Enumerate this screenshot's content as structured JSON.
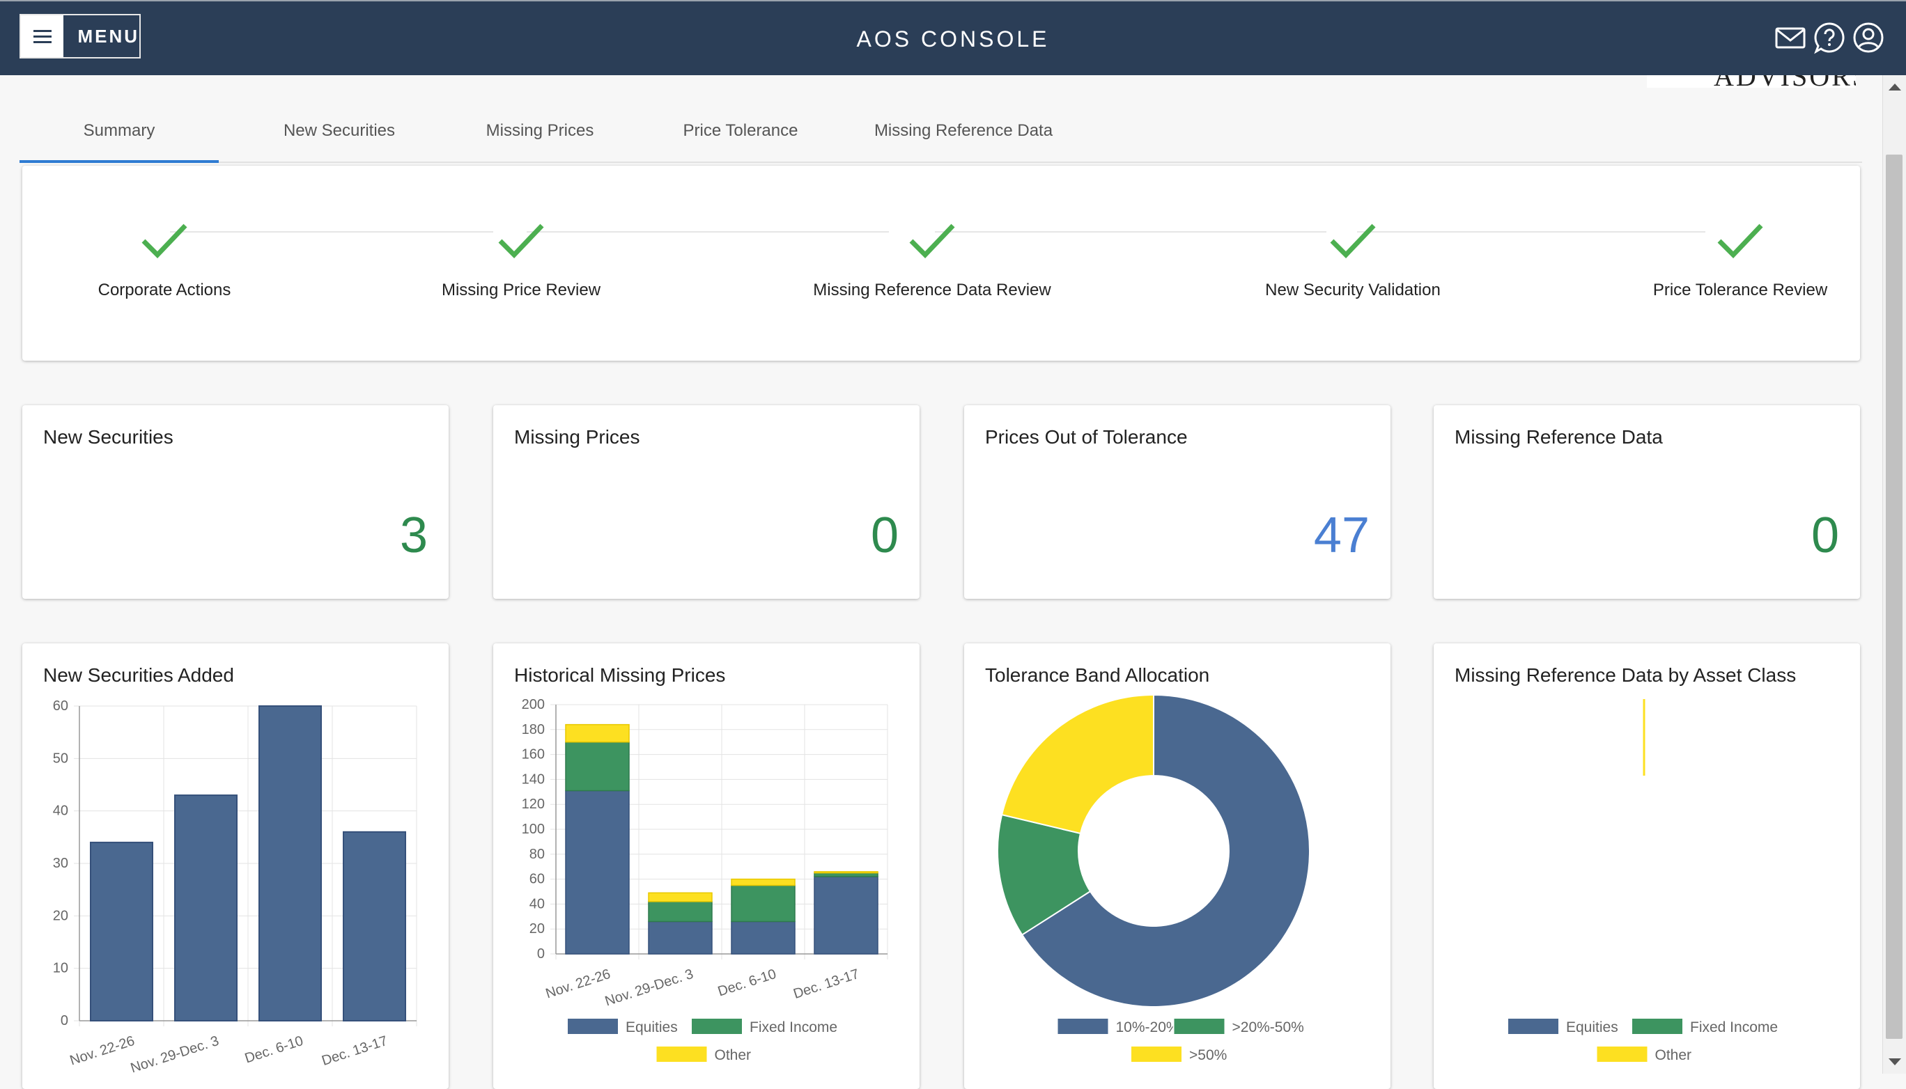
{
  "header": {
    "menu_label": "MENU",
    "title": "AOS CONSOLE"
  },
  "logo_text": "ADVISORS",
  "tabs": [
    {
      "label": "Summary",
      "active": true
    },
    {
      "label": "New Securities",
      "active": false
    },
    {
      "label": "Missing Prices",
      "active": false
    },
    {
      "label": "Price Tolerance",
      "active": false
    },
    {
      "label": "Missing Reference Data",
      "active": false
    }
  ],
  "steps": [
    {
      "label": "Corporate Actions",
      "status": "complete"
    },
    {
      "label": "Missing Price Review",
      "status": "complete"
    },
    {
      "label": "Missing Reference Data Review",
      "status": "complete"
    },
    {
      "label": "New Security Validation",
      "status": "complete"
    },
    {
      "label": "Price Tolerance Review",
      "status": "complete"
    }
  ],
  "stats": [
    {
      "title": "New Securities",
      "value": "3",
      "color": "#2e8a4e"
    },
    {
      "title": "Missing Prices",
      "value": "0",
      "color": "#2e8a4e"
    },
    {
      "title": "Prices Out of Tolerance",
      "value": "47",
      "color": "#4a7fd2"
    },
    {
      "title": "Missing Reference Data",
      "value": "0",
      "color": "#2e8a4e"
    }
  ],
  "colors": {
    "header_bg": "#2b3e57",
    "tab_active": "#2f7bd2",
    "check": "#4caf50",
    "equities": "#4a6890",
    "fixed_income": "#3d9460",
    "other": "#fde021"
  },
  "icons": [
    "menu-icon",
    "mail-icon",
    "help-icon",
    "account-icon"
  ],
  "chart_data": [
    {
      "type": "bar",
      "title": "New Securities Added",
      "categories": [
        "Nov. 22-26",
        "Nov. 29-Dec. 3",
        "Dec. 6-10",
        "Dec. 13-17"
      ],
      "values": [
        34,
        43,
        60,
        36
      ],
      "ylim": [
        0,
        60
      ],
      "yticks": [
        0,
        10,
        20,
        30,
        40,
        50,
        60
      ],
      "grid": true
    },
    {
      "type": "bar",
      "stacked": true,
      "title": "Historical Missing Prices",
      "categories": [
        "Nov. 22-26",
        "Nov. 29-Dec. 3",
        "Dec. 6-10",
        "Dec. 13-17"
      ],
      "series": [
        {
          "name": "Equities",
          "values": [
            131,
            26,
            26,
            62
          ]
        },
        {
          "name": "Fixed Income",
          "values": [
            39,
            16,
            29,
            3
          ]
        },
        {
          "name": "Other",
          "values": [
            14,
            7,
            5,
            1
          ]
        }
      ],
      "ylim": [
        0,
        200
      ],
      "yticks": [
        0,
        20,
        40,
        60,
        80,
        100,
        120,
        140,
        160,
        180,
        200
      ],
      "grid": true,
      "legend": "bottom"
    },
    {
      "type": "pie",
      "donut": true,
      "title": "Tolerance Band Allocation",
      "series": [
        {
          "name": "10%-20%",
          "value": 31
        },
        {
          "name": ">20%-50%",
          "value": 6
        },
        {
          "name": ">50%",
          "value": 10
        }
      ],
      "legend": "bottom"
    },
    {
      "type": "bar",
      "title": "Missing Reference Data by Asset Class",
      "series": [
        {
          "name": "Equities",
          "value": 0
        },
        {
          "name": "Fixed Income",
          "value": 0
        },
        {
          "name": "Other",
          "value": 0
        }
      ],
      "legend": "bottom"
    }
  ]
}
